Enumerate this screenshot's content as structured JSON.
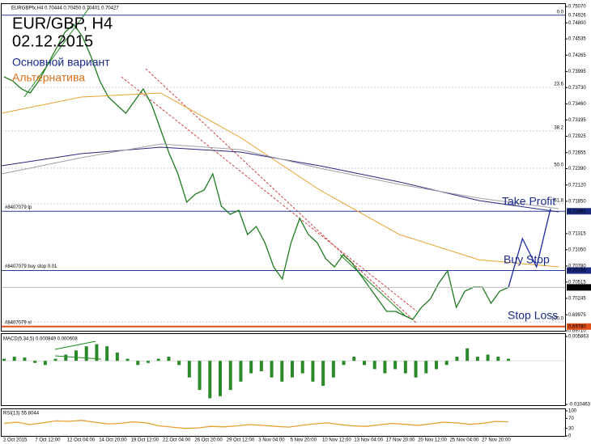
{
  "header": "EURGBPfx,H4  0.70444 0.70450 0.70401 0.70427",
  "time_axis": {
    "labels": [
      "2 Oct 2015",
      "7 Oct 12:00",
      "12 Oct 04:00",
      "14 Oct 20:00",
      "19 Oct 12:00",
      "22 Oct 04:00",
      "26 Oct 20:00",
      "29 Oct 12:00",
      "3 Nov 04:00",
      "5 Nov 20:00",
      "10 Nov 12:00",
      "13 Nov 04:00",
      "17 Nov 20:00",
      "20 Nov 12:00",
      "25 Nov 04:00",
      "27 Nov 20:00"
    ]
  },
  "chart_data": [
    {
      "type": "line",
      "annotations": [
        {
          "text": "EUR/GBP, H4",
          "color": "#000000"
        },
        {
          "text": "02.12.2015",
          "color": "#000000"
        },
        {
          "text": "Основной вариант",
          "color": "#1a2a8a"
        },
        {
          "text": "Альтернатива",
          "color": "#e0701a"
        },
        {
          "text": "Take Profit",
          "color": "#1a2a8a"
        },
        {
          "text": "Buy Stop",
          "color": "#1a2a8a"
        },
        {
          "text": "Stop Loss",
          "color": "#1a2a8a"
        }
      ],
      "ylim": [
        0.6971,
        0.7507
      ],
      "yticks": [
        {
          "value": 0.7507,
          "label": "0.75070"
        },
        {
          "value": 0.748,
          "label": "0.74800"
        },
        0.74535,
        0.74265,
        0.73995,
        {
          "value": 0.7373,
          "label": "0.73730"
        },
        {
          "value": 0.7346,
          "label": "0.73460"
        },
        0.73195,
        0.72925,
        0.72655,
        {
          "value": 0.7239,
          "label": "0.72390"
        },
        {
          "value": 0.7212,
          "label": "0.72120"
        },
        {
          "value": 0.7185,
          "label": "0.71850"
        },
        0.71315,
        {
          "value": 0.7105,
          "label": "0.71050"
        },
        {
          "value": 0.7078,
          "label": "0.70780"
        },
        0.70515,
        0.70245,
        0.69975,
        {
          "value": 0.6971,
          "label": "0.69710"
        }
      ],
      "series": [
        {
          "color": "#1f7a1f",
          "values": [
            0.73907,
            0.7384,
            0.73707,
            0.7364,
            0.7384,
            0.74108,
            0.74375,
            0.74642,
            0.74776,
            0.74575,
            0.74241,
            0.7384,
            0.73573,
            0.73439,
            0.73306,
            0.73506,
            0.73707,
            0.73439,
            0.73038,
            0.72637,
            0.72303,
            0.71835,
            0.71969,
            0.72036,
            0.72303,
            0.71768,
            0.71635,
            0.71702,
            0.71301,
            0.71434,
            0.71167,
            0.70766,
            0.70565,
            0.71167,
            0.71568,
            0.71301,
            0.71167,
            0.709,
            0.70766,
            0.70966,
            0.70833,
            0.70632,
            0.70432,
            0.70231,
            0.70031,
            0.70031,
            0.69964,
            0.69897,
            0.70098,
            0.70231,
            0.70499,
            0.70699,
            0.70098,
            0.70365,
            0.70432,
            0.70432,
            0.70164,
            0.70365,
            0.70427
          ]
        },
        {
          "color": "#e8a030",
          "values": [
            0.73306,
            0.73573,
            0.7364,
            0.72905,
            0.72036,
            0.71301,
            0.70883,
            0.70766
          ]
        },
        {
          "color": "#2a2a80",
          "values": [
            0.72437,
            0.72637,
            0.72744,
            0.72664,
            0.72437,
            0.72169,
            0.71862,
            0.71675
          ]
        },
        {
          "color": "#a0a0a8",
          "values": [
            0.72303,
            0.7257,
            0.72798,
            0.72704,
            0.72397,
            0.72129,
            0.71902,
            0.71728
          ]
        },
        {
          "color": "#1a2aa0",
          "values": [
            0.70427,
            0.71234,
            0.70766,
            0.71728
          ]
        }
      ],
      "levels": [
        {
          "name": "#8407079 tp",
          "value": 0.71685,
          "color": "#2a3a9a"
        },
        {
          "name": "#8407079 buy stop 0.01",
          "value": 0.70705,
          "color": "#2a3a9a"
        },
        {
          "name": "#8407079 sl",
          "value": 0.6978,
          "value_label": "0.69780",
          "color": "#e0501a"
        }
      ],
      "fib_levels": [
        {
          "label": "0.0",
          "value": 0.74926
        },
        {
          "label": "23.6",
          "value": 0.73733
        },
        {
          "label": "38.2",
          "value": 0.73012
        },
        {
          "label": "50.0",
          "value": 0.72397
        },
        {
          "label": "61.8",
          "value": 0.71809
        },
        {
          "label": "100.0",
          "value": 0.69857
        }
      ],
      "last": 0.70427
    },
    {
      "type": "bar",
      "title": "MACD(5,34,5) 0.000849 0.000608",
      "color": "#2a8a2a",
      "ylim": [
        -0.010463,
        0.005863
      ],
      "yticks": [
        0.005863,
        -0.010463
      ],
      "values": [
        0.0005,
        0.001,
        0.0008,
        -0.0005,
        -0.001,
        0.0005,
        0.0015,
        0.0025,
        0.0035,
        0.004,
        0.0035,
        0.002,
        0.0005,
        -0.001,
        -0.0005,
        0.0005,
        0.001,
        -0.001,
        -0.004,
        -0.007,
        -0.009,
        -0.0085,
        -0.007,
        -0.005,
        -0.003,
        -0.0025,
        -0.004,
        -0.005,
        -0.004,
        -0.003,
        -0.005,
        -0.006,
        -0.004,
        -0.001,
        0.001,
        -0.001,
        -0.002,
        -0.003,
        -0.002,
        -0.003,
        -0.004,
        -0.003,
        -0.002,
        -0.001,
        0.001,
        0.003,
        0.001,
        0.0015,
        0.001,
        0.0005
      ]
    },
    {
      "type": "line",
      "title": "RSI(13) 55.8044",
      "color": "#e8a030",
      "ylim": [
        0,
        100
      ],
      "yticks": [
        100,
        70,
        30,
        0
      ],
      "values": [
        50,
        55,
        45,
        52,
        60,
        58,
        62,
        55,
        48,
        50,
        56,
        52,
        40,
        35,
        30,
        32,
        38,
        36,
        40,
        45,
        42,
        38,
        35,
        42,
        48,
        52,
        45,
        40,
        38,
        44,
        50,
        46,
        42,
        48,
        55,
        52,
        46,
        50,
        58,
        56
      ]
    }
  ]
}
